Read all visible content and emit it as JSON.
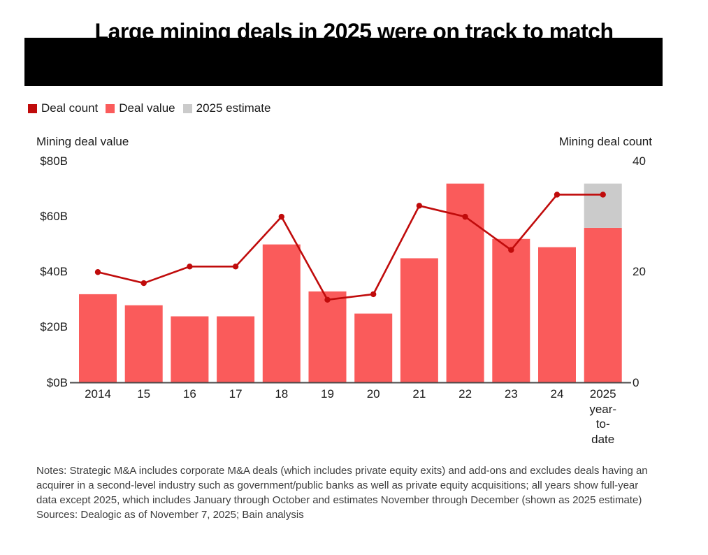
{
  "header": {
    "title": "Large mining deals in 2025 were on track to match",
    "redacted_subtitle": true
  },
  "legend": {
    "items": [
      {
        "label": "Deal count",
        "color": "#c00b0b"
      },
      {
        "label": "Deal value",
        "color": "#fa5b5b"
      },
      {
        "label": "2025 estimate",
        "color": "#cbcbcb"
      }
    ]
  },
  "chart_data": {
    "type": "combo",
    "title": "Large mining deals in 2025 were on track to match",
    "categories": [
      "2014",
      "15",
      "16",
      "17",
      "18",
      "19",
      "20",
      "21",
      "22",
      "23",
      "24",
      "2025 year-to-date"
    ],
    "x_tick_display": [
      "2014",
      "15",
      "16",
      "17",
      "18",
      "19",
      "20",
      "21",
      "22",
      "23",
      "24",
      "2025\nyear-\nto-\ndate"
    ],
    "value_axis": {
      "title": "Mining deal value",
      "range": [
        0,
        80
      ],
      "ticks": [
        {
          "label": "$80B",
          "value": 80
        },
        {
          "label": "$60B",
          "value": 60
        },
        {
          "label": "$40B",
          "value": 40
        },
        {
          "label": "$20B",
          "value": 20
        },
        {
          "label": "$0B",
          "value": 0
        }
      ]
    },
    "count_axis": {
      "title": "Mining deal count",
      "range": [
        0,
        40
      ],
      "ticks": [
        {
          "label": "40",
          "value": 40
        },
        {
          "label": "20",
          "value": 20
        },
        {
          "label": "0",
          "value": 0
        }
      ]
    },
    "series": [
      {
        "name": "Deal value",
        "type": "bar",
        "axis": "value",
        "unit": "$B",
        "color": "#fa5b5b",
        "values": [
          32,
          28,
          24,
          24,
          50,
          33,
          25,
          45,
          72,
          52,
          49,
          56
        ]
      },
      {
        "name": "2025 estimate",
        "type": "bar-stack",
        "axis": "value",
        "unit": "$B",
        "color": "#cbcbcb",
        "values": [
          null,
          null,
          null,
          null,
          null,
          null,
          null,
          null,
          null,
          null,
          null,
          16
        ]
      },
      {
        "name": "Deal count",
        "type": "line",
        "axis": "count",
        "color": "#c00b0b",
        "values": [
          20,
          18,
          21,
          21,
          30,
          15,
          16,
          32,
          30,
          24,
          34,
          34
        ]
      }
    ],
    "grid": false,
    "legend_position": "top-left",
    "axis_line_color": "#4a4a4a"
  },
  "footer": {
    "notes": "Notes: Strategic M&A includes corporate M&A deals (which includes private equity exits) and add-ons and excludes deals having an acquirer in a second-level industry such as government/public banks as well as private equity acquisitions; all years show full-year data except 2025, which includes January through October and estimates November through December (shown as 2025 estimate)",
    "sources": "Sources: Dealogic as of November 7, 2025; Bain analysis"
  }
}
